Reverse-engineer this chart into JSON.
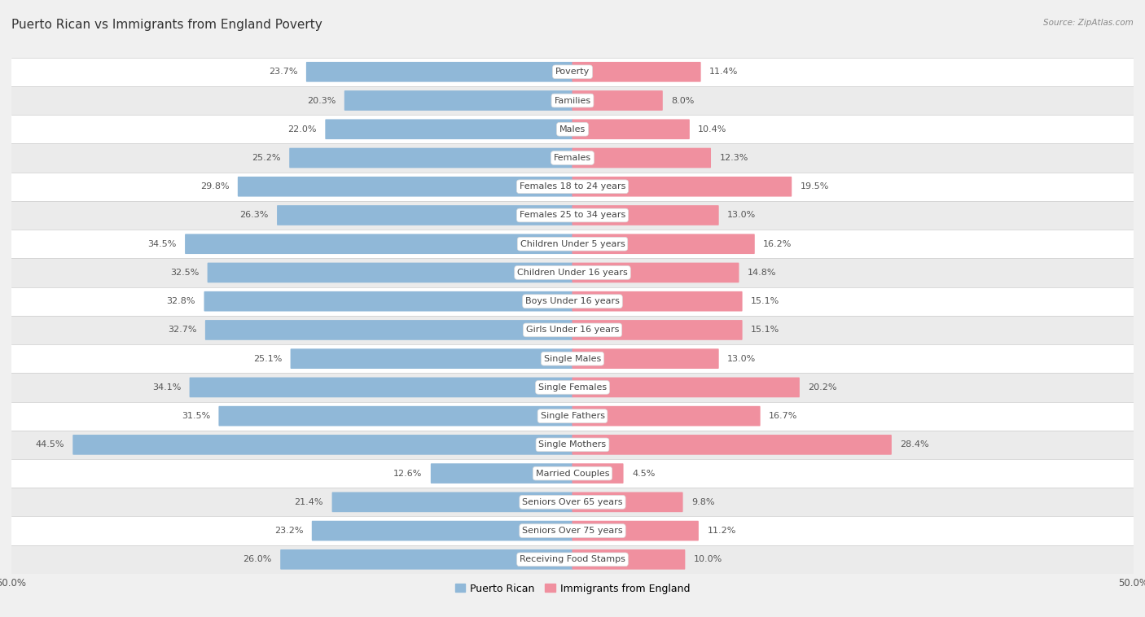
{
  "title": "Puerto Rican vs Immigrants from England Poverty",
  "source": "Source: ZipAtlas.com",
  "categories": [
    "Poverty",
    "Families",
    "Males",
    "Females",
    "Females 18 to 24 years",
    "Females 25 to 34 years",
    "Children Under 5 years",
    "Children Under 16 years",
    "Boys Under 16 years",
    "Girls Under 16 years",
    "Single Males",
    "Single Females",
    "Single Fathers",
    "Single Mothers",
    "Married Couples",
    "Seniors Over 65 years",
    "Seniors Over 75 years",
    "Receiving Food Stamps"
  ],
  "puerto_rican": [
    23.7,
    20.3,
    22.0,
    25.2,
    29.8,
    26.3,
    34.5,
    32.5,
    32.8,
    32.7,
    25.1,
    34.1,
    31.5,
    44.5,
    12.6,
    21.4,
    23.2,
    26.0
  ],
  "england": [
    11.4,
    8.0,
    10.4,
    12.3,
    19.5,
    13.0,
    16.2,
    14.8,
    15.1,
    15.1,
    13.0,
    20.2,
    16.7,
    28.4,
    4.5,
    9.8,
    11.2,
    10.0
  ],
  "puerto_rican_color": "#90b8d8",
  "england_color": "#f0909f",
  "axis_max": 50.0,
  "bg_white": "#ffffff",
  "bg_grey": "#ebebeb",
  "fig_bg": "#f0f0f0",
  "separator_color": "#cccccc",
  "title_fontsize": 11,
  "label_fontsize": 8,
  "value_fontsize": 8
}
